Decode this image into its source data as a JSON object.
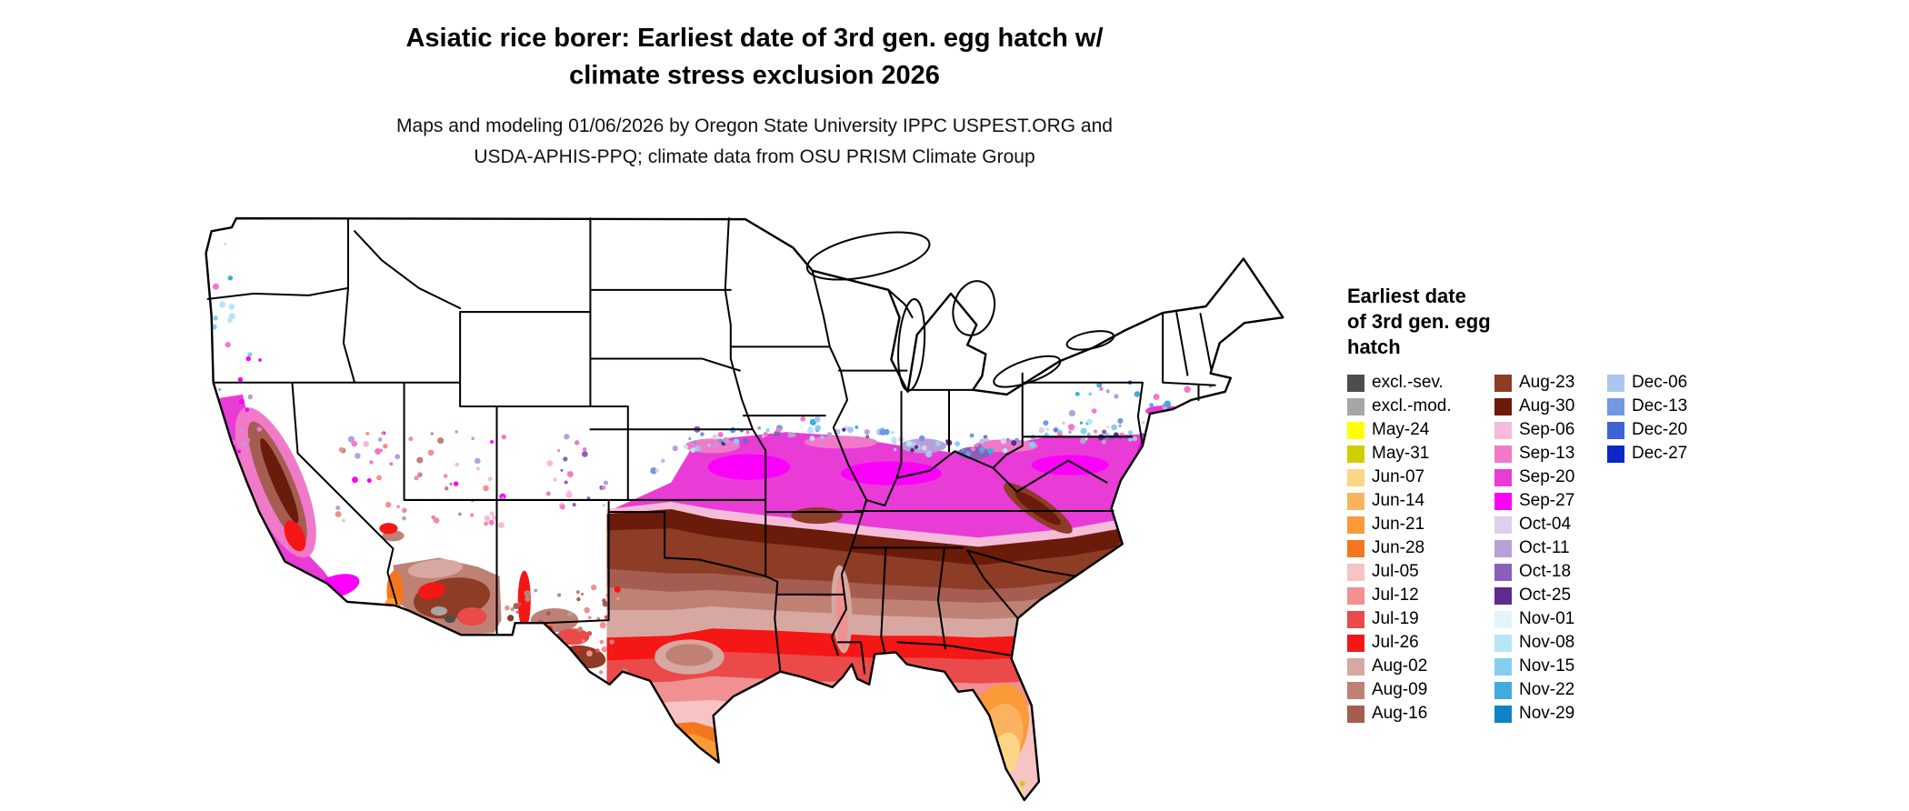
{
  "header": {
    "title_lines": [
      "Asiatic rice borer: Earliest date of 3rd gen. egg hatch w/",
      "climate stress exclusion 2026"
    ],
    "subtitle_lines": [
      "Maps and modeling 01/06/2026 by Oregon State University IPPC USPEST.ORG and",
      "USDA-APHIS-PPQ; climate data from OSU PRISM Climate Group"
    ]
  },
  "map": {
    "region": "Contiguous United States",
    "kind": "choropleth of earliest date of 3rd generation egg hatch"
  },
  "legend": {
    "title_lines": [
      "Earliest date",
      "of 3rd gen. egg",
      "hatch"
    ],
    "columns": [
      [
        {
          "key": "excl_sev",
          "label": "excl.-sev.",
          "color": "#4d4d4d"
        },
        {
          "key": "excl_mod",
          "label": "excl.-mod.",
          "color": "#a6a6a6"
        },
        {
          "key": "may24",
          "label": "May-24",
          "color": "#ffff00"
        },
        {
          "key": "may31",
          "label": "May-31",
          "color": "#cfcf00"
        },
        {
          "key": "jun07",
          "label": "Jun-07",
          "color": "#fbd687"
        },
        {
          "key": "jun14",
          "label": "Jun-14",
          "color": "#fbb360"
        },
        {
          "key": "jun21",
          "label": "Jun-21",
          "color": "#fb9a38"
        },
        {
          "key": "jun28",
          "label": "Jun-28",
          "color": "#f4771f"
        },
        {
          "key": "jul05",
          "label": "Jul-05",
          "color": "#f8c3c3"
        },
        {
          "key": "jul12",
          "label": "Jul-12",
          "color": "#f09090"
        },
        {
          "key": "jul19",
          "label": "Jul-19",
          "color": "#eb4a4a"
        },
        {
          "key": "jul26",
          "label": "Jul-26",
          "color": "#f51616"
        },
        {
          "key": "aug02",
          "label": "Aug-02",
          "color": "#d6a8a1"
        },
        {
          "key": "aug09",
          "label": "Aug-09",
          "color": "#c08175"
        },
        {
          "key": "aug16",
          "label": "Aug-16",
          "color": "#a65d51"
        }
      ],
      [
        {
          "key": "aug23",
          "label": "Aug-23",
          "color": "#8d3c26"
        },
        {
          "key": "aug30",
          "label": "Aug-30",
          "color": "#6a1b09"
        },
        {
          "key": "sep06",
          "label": "Sep-06",
          "color": "#f5bcd9"
        },
        {
          "key": "sep13",
          "label": "Sep-13",
          "color": "#f07ac9"
        },
        {
          "key": "sep20",
          "label": "Sep-20",
          "color": "#e93cd6"
        },
        {
          "key": "sep27",
          "label": "Sep-27",
          "color": "#fb00fb"
        },
        {
          "key": "oct04",
          "label": "Oct-04",
          "color": "#dcd0ea"
        },
        {
          "key": "oct11",
          "label": "Oct-11",
          "color": "#b79fd8"
        },
        {
          "key": "oct18",
          "label": "Oct-18",
          "color": "#8a5fba"
        },
        {
          "key": "oct25",
          "label": "Oct-25",
          "color": "#5e2c8e"
        },
        {
          "key": "nov01",
          "label": "Nov-01",
          "color": "#e3f5fc"
        },
        {
          "key": "nov08",
          "label": "Nov-08",
          "color": "#b8e6f7"
        },
        {
          "key": "nov15",
          "label": "Nov-15",
          "color": "#83cff0"
        },
        {
          "key": "nov22",
          "label": "Nov-22",
          "color": "#41abe0"
        },
        {
          "key": "nov29",
          "label": "Nov-29",
          "color": "#0f83c6"
        }
      ],
      [
        {
          "key": "dec06",
          "label": "Dec-06",
          "color": "#abc6ef"
        },
        {
          "key": "dec13",
          "label": "Dec-13",
          "color": "#7397e2"
        },
        {
          "key": "dec20",
          "label": "Dec-20",
          "color": "#3d63d4"
        },
        {
          "key": "dec27",
          "label": "Dec-27",
          "color": "#0d27c4"
        }
      ]
    ]
  }
}
